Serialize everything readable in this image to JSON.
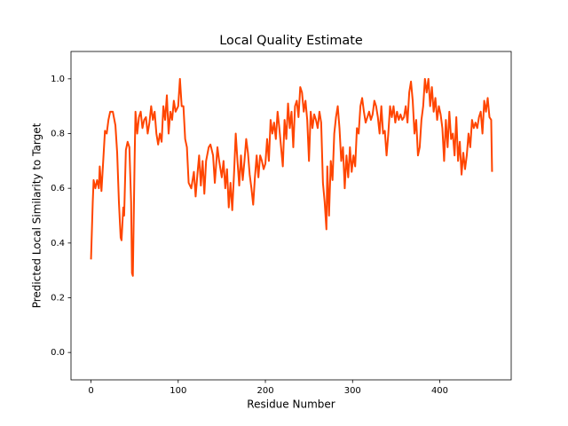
{
  "chart_data": {
    "type": "line",
    "title": "Local Quality Estimate",
    "xlabel": "Residue Number",
    "ylabel": "Predicted Local Similarity to Target",
    "color": "#ff4500",
    "x": [
      0,
      2,
      3,
      5,
      7,
      9,
      10,
      12,
      14,
      16,
      18,
      20,
      22,
      25,
      28,
      30,
      32,
      34,
      35,
      37,
      38,
      40,
      42,
      44,
      46,
      47,
      48,
      50,
      51,
      53,
      55,
      57,
      59,
      61,
      63,
      65,
      67,
      69,
      71,
      73,
      75,
      77,
      79,
      81,
      83,
      85,
      87,
      89,
      91,
      93,
      95,
      97,
      100,
      102,
      104,
      106,
      108,
      110,
      112,
      115,
      118,
      120,
      122,
      124,
      126,
      128,
      130,
      132,
      135,
      137,
      140,
      142,
      145,
      147,
      150,
      152,
      154,
      156,
      158,
      160,
      162,
      164,
      166,
      168,
      170,
      172,
      174,
      176,
      178,
      180,
      182,
      184,
      186,
      188,
      190,
      192,
      194,
      196,
      198,
      200,
      202,
      204,
      206,
      208,
      210,
      212,
      214,
      216,
      218,
      220,
      222,
      224,
      226,
      228,
      230,
      232,
      234,
      236,
      238,
      240,
      242,
      244,
      246,
      248,
      250,
      252,
      254,
      256,
      258,
      260,
      262,
      264,
      266,
      268,
      270,
      271,
      273,
      275,
      277,
      279,
      281,
      283,
      285,
      287,
      289,
      291,
      293,
      295,
      297,
      299,
      301,
      303,
      305,
      307,
      309,
      311,
      313,
      315,
      317,
      319,
      321,
      323,
      325,
      327,
      329,
      331,
      333,
      335,
      337,
      339,
      341,
      343,
      345,
      347,
      349,
      351,
      353,
      355,
      357,
      359,
      361,
      363,
      365,
      367,
      369,
      371,
      373,
      375,
      377,
      379,
      381,
      383,
      385,
      387,
      389,
      391,
      393,
      395,
      397,
      399,
      401,
      403,
      405,
      407,
      409,
      411,
      413,
      415,
      417,
      419,
      421,
      423,
      425,
      427,
      429,
      431,
      433,
      435,
      437,
      439,
      441,
      443,
      445,
      447,
      449,
      451,
      453,
      455,
      457,
      459,
      460
    ],
    "values": [
      0.34,
      0.55,
      0.63,
      0.6,
      0.63,
      0.6,
      0.68,
      0.59,
      0.7,
      0.81,
      0.8,
      0.85,
      0.88,
      0.88,
      0.83,
      0.73,
      0.55,
      0.42,
      0.41,
      0.53,
      0.5,
      0.74,
      0.77,
      0.75,
      0.55,
      0.29,
      0.28,
      0.7,
      0.88,
      0.8,
      0.86,
      0.88,
      0.82,
      0.85,
      0.86,
      0.8,
      0.84,
      0.9,
      0.85,
      0.88,
      0.8,
      0.76,
      0.8,
      0.77,
      0.9,
      0.85,
      0.94,
      0.8,
      0.88,
      0.85,
      0.92,
      0.88,
      0.9,
      1.0,
      0.9,
      0.9,
      0.78,
      0.75,
      0.62,
      0.6,
      0.66,
      0.57,
      0.65,
      0.72,
      0.61,
      0.7,
      0.58,
      0.7,
      0.75,
      0.76,
      0.72,
      0.62,
      0.75,
      0.7,
      0.64,
      0.7,
      0.6,
      0.67,
      0.53,
      0.62,
      0.52,
      0.65,
      0.8,
      0.7,
      0.61,
      0.72,
      0.63,
      0.7,
      0.78,
      0.73,
      0.65,
      0.6,
      0.54,
      0.64,
      0.72,
      0.64,
      0.72,
      0.7,
      0.67,
      0.69,
      0.78,
      0.7,
      0.85,
      0.8,
      0.84,
      0.78,
      0.88,
      0.82,
      0.75,
      0.68,
      0.85,
      0.78,
      0.91,
      0.82,
      0.88,
      0.75,
      0.9,
      0.92,
      0.86,
      0.97,
      0.95,
      0.88,
      0.92,
      0.85,
      0.7,
      0.88,
      0.82,
      0.87,
      0.85,
      0.82,
      0.88,
      0.84,
      0.62,
      0.55,
      0.45,
      0.68,
      0.5,
      0.7,
      0.63,
      0.8,
      0.86,
      0.9,
      0.82,
      0.7,
      0.75,
      0.6,
      0.72,
      0.64,
      0.75,
      0.66,
      0.72,
      0.68,
      0.82,
      0.8,
      0.9,
      0.93,
      0.88,
      0.84,
      0.86,
      0.88,
      0.85,
      0.87,
      0.92,
      0.9,
      0.86,
      0.8,
      0.9,
      0.8,
      0.81,
      0.72,
      0.8,
      0.9,
      0.86,
      0.9,
      0.84,
      0.88,
      0.85,
      0.87,
      0.85,
      0.86,
      0.9,
      0.84,
      0.95,
      0.99,
      0.92,
      0.8,
      0.85,
      0.72,
      0.75,
      0.85,
      0.9,
      1.0,
      0.95,
      1.0,
      0.9,
      0.97,
      0.88,
      0.93,
      0.85,
      0.9,
      0.87,
      0.82,
      0.7,
      0.85,
      0.75,
      0.88,
      0.78,
      0.8,
      0.72,
      0.86,
      0.7,
      0.77,
      0.65,
      0.73,
      0.67,
      0.72,
      0.8,
      0.75,
      0.85,
      0.82,
      0.84,
      0.82,
      0.86,
      0.88,
      0.8,
      0.92,
      0.88,
      0.93,
      0.86,
      0.85,
      0.66
    ],
    "xlim": [
      -22.95,
      481.95
    ],
    "ylim": [
      -0.1,
      1.1
    ],
    "xticks": [
      0,
      100,
      200,
      300,
      400
    ],
    "yticks": [
      {
        "value": 0,
        "label": "0.0"
      },
      0.2,
      0.4,
      0.6,
      0.8,
      {
        "value": 1,
        "label": "1.0"
      }
    ]
  }
}
